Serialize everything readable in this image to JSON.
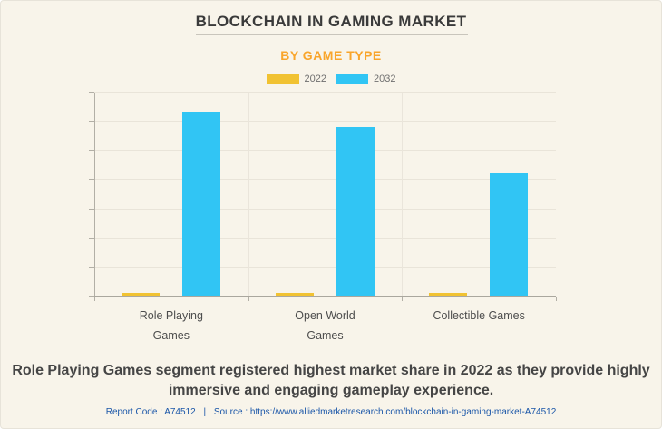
{
  "header": {
    "title": "BLOCKCHAIN IN GAMING MARKET",
    "subtitle": "BY GAME TYPE"
  },
  "chart_data": {
    "type": "bar",
    "title": "BLOCKCHAIN IN GAMING MARKET",
    "subtitle": "BY GAME TYPE",
    "categories": [
      "Role Playing Games",
      "Open World Games",
      "Collectible Games"
    ],
    "category_label_lines": [
      [
        "Role Playing",
        "Games"
      ],
      [
        "Open World",
        "Games"
      ],
      [
        "Collectible Games"
      ]
    ],
    "series": [
      {
        "name": "2022",
        "color": "#f1c232",
        "values": [
          0.1,
          0.1,
          0.1
        ]
      },
      {
        "name": "2032",
        "color": "#31c5f4",
        "values": [
          6.3,
          5.8,
          4.2
        ]
      }
    ],
    "value_axis": {
      "min": 0,
      "max": 7,
      "gridline_intervals": 7,
      "tick_labels_visible": false
    },
    "units": "relative gridline units (value axis unlabeled)",
    "legend_position": "top",
    "grid": true,
    "note": "Blue 2032 bars dominate; yellow 2022 bars are barely above the baseline"
  },
  "footer": {
    "insight_lines": [
      "Role Playing Games segment registered highest market share in 2022 as they provide highly",
      "immersive and engaging gameplay experience."
    ],
    "report_code_label": "Report Code : A74512",
    "separator": "|",
    "source_label": "Source :",
    "source_url": "https://www.alliedmarketresearch.com/blockchain-in-gaming-market-A74512"
  },
  "colors": {
    "background": "#f8f4ea",
    "title_text": "#3a3a3a",
    "subtitle_text": "#f9a52b",
    "series_2022": "#f1c232",
    "series_2032": "#31c5f4",
    "gridline": "#e9e4d9",
    "axis": "#aaa79e",
    "footer_link": "#1a56a8"
  }
}
